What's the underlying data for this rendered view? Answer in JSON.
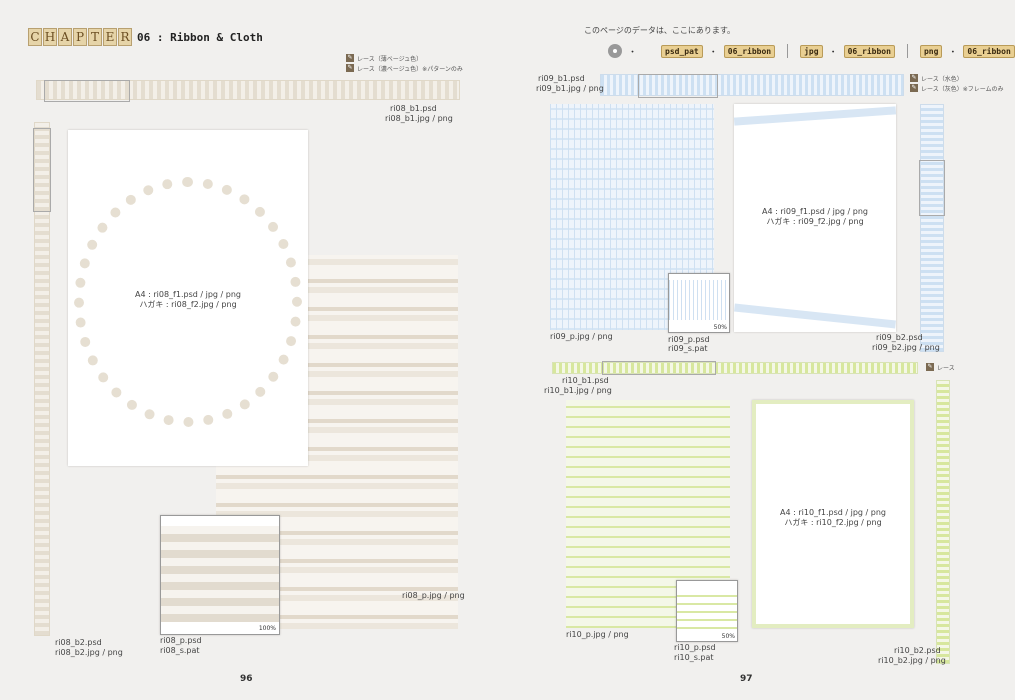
{
  "chapter": {
    "letters": [
      "C",
      "H",
      "A",
      "P",
      "T",
      "E",
      "R"
    ],
    "title": "06 : Ribbon & Cloth"
  },
  "left": {
    "legend": [
      {
        "icon": "lace-icon",
        "label": "レース（薄ベージュ色）"
      },
      {
        "icon": "lace-icon",
        "label": "レース（濃ベージュ色）※パターンのみ"
      }
    ],
    "labels": {
      "b1_psd": "ri08_b1.psd",
      "b1_jpg": "ri08_b1.jpg / png",
      "frame_a4": "A4 : ri08_f1.psd / jpg / png",
      "frame_hagaki": "ハガキ : ri08_f2.jpg / png",
      "p_jpg": "ri08_p.jpg / png",
      "p_psd": "ri08_p.psd",
      "s_pat": "ri08_s.pat",
      "b2_psd": "ri08_b2.psd",
      "b2_jpg": "ri08_b2.jpg / png",
      "zoom": "100%"
    },
    "page_number": "96"
  },
  "right": {
    "header": "このページのデータは、ここにあります。",
    "paths": [
      {
        "tags": [
          "psd_pat",
          "06_ribbon"
        ]
      },
      {
        "tags": [
          "jpg",
          "06_ribbon"
        ]
      },
      {
        "tags": [
          "png",
          "06_ribbon"
        ]
      }
    ],
    "dot": "・",
    "legend_top": [
      {
        "icon": "lace-icon",
        "label": "レース（水色）"
      },
      {
        "icon": "lace-icon",
        "label": "レース（灰色）※フレームのみ"
      }
    ],
    "legend_mid": {
      "icon": "lace-icon",
      "label": "レース"
    },
    "labels": {
      "b1_psd": "ri09_b1.psd",
      "b1_jpg": "ri09_b1.jpg / png",
      "frame_a4": "A4 : ri09_f1.psd / jpg / png",
      "frame_hagaki": "ハガキ : ri09_f2.jpg / png",
      "p_jpg": "ri09_p.jpg / png",
      "p_psd": "ri09_p.psd",
      "s_pat": "ri09_s.pat",
      "zoom": "50%",
      "b2_psd": "ri09_b2.psd",
      "b2_jpg": "ri09_b2.jpg / png",
      "r10_b1_psd": "ri10_b1.psd",
      "r10_b1_jpg": "ri10_b1.jpg / png",
      "r10_frame_a4": "A4 : ri10_f1.psd / jpg / png",
      "r10_frame_hagaki": "ハガキ : ri10_f2.jpg / png",
      "r10_p_jpg": "ri10_p.jpg / png",
      "r10_p_psd": "ri10_p.psd",
      "r10_s_pat": "ri10_s.pat",
      "r10_zoom": "50%",
      "r10_b2_psd": "ri10_b2.psd",
      "r10_b2_jpg": "ri10_b2.jpg / png"
    },
    "page_number": "97"
  }
}
